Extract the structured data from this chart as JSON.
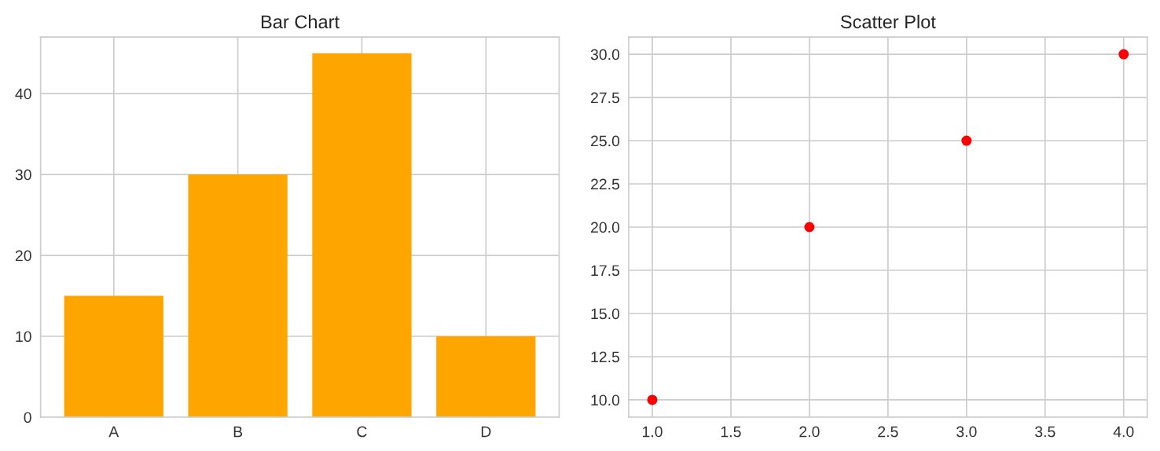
{
  "chart_data": [
    {
      "type": "bar",
      "title": "Bar Chart",
      "categories": [
        "A",
        "B",
        "C",
        "D"
      ],
      "values": [
        15,
        30,
        45,
        10
      ],
      "color": "#ffa500",
      "ylim": [
        0,
        47
      ],
      "yticks": [
        0,
        10,
        20,
        30,
        40
      ],
      "grid": true
    },
    {
      "type": "scatter",
      "title": "Scatter Plot",
      "x": [
        1.0,
        2.0,
        3.0,
        4.0
      ],
      "values": [
        10,
        20,
        25,
        30
      ],
      "color": "#ff0000",
      "marker": "circle",
      "xlim": [
        0.85,
        4.15
      ],
      "xticks": [
        {
          "value": 1,
          "label": "1.0"
        },
        {
          "value": 1.5,
          "label": "1.5"
        },
        {
          "value": 2,
          "label": "2.0"
        },
        {
          "value": 2.5,
          "label": "2.5"
        },
        {
          "value": 3,
          "label": "3.0"
        },
        {
          "value": 3.5,
          "label": "3.5"
        },
        {
          "value": 4,
          "label": "4.0"
        }
      ],
      "ylim": [
        9,
        31
      ],
      "yticks": [
        {
          "value": 10,
          "label": "10.0"
        },
        {
          "value": 12.5,
          "label": "12.5"
        },
        {
          "value": 15,
          "label": "15.0"
        },
        {
          "value": 17.5,
          "label": "17.5"
        },
        {
          "value": 20,
          "label": "20.0"
        },
        {
          "value": 22.5,
          "label": "22.5"
        },
        {
          "value": 25,
          "label": "25.0"
        },
        {
          "value": 27.5,
          "label": "27.5"
        },
        {
          "value": 30,
          "label": "30.0"
        }
      ],
      "grid": true
    }
  ]
}
